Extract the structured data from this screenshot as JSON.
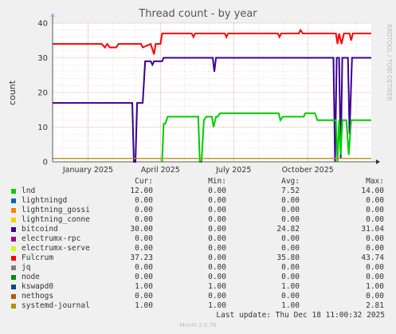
{
  "chart_data": {
    "type": "line",
    "title": "Thread count - by year",
    "ylabel": "count",
    "ylim": [
      0,
      40
    ],
    "yticks": [
      0,
      10,
      20,
      30,
      40
    ],
    "xlim": [
      "2024-11-18",
      "2025-12-19"
    ],
    "xticks": [
      {
        "date": "2025-01-01",
        "label": "January 2025"
      },
      {
        "date": "2025-04-01",
        "label": "April 2025"
      },
      {
        "date": "2025-07-01",
        "label": "July 2025"
      },
      {
        "date": "2025-10-01",
        "label": "October 2025"
      }
    ],
    "grid": true,
    "series": [
      {
        "name": "Fulcrum",
        "color": "#ff0000",
        "width": 2,
        "points": [
          [
            "2024-11-18",
            34
          ],
          [
            "2025-01-18",
            34
          ],
          [
            "2025-01-22",
            33
          ],
          [
            "2025-01-25",
            34
          ],
          [
            "2025-01-28",
            33
          ],
          [
            "2025-02-05",
            33
          ],
          [
            "2025-02-08",
            34
          ],
          [
            "2025-03-01",
            34
          ],
          [
            "2025-03-08",
            34
          ],
          [
            "2025-03-10",
            33
          ],
          [
            "2025-03-20",
            34
          ],
          [
            "2025-03-24",
            31
          ],
          [
            "2025-03-26",
            34
          ],
          [
            "2025-04-01",
            34
          ],
          [
            "2025-04-03",
            37
          ],
          [
            "2025-05-10",
            37
          ],
          [
            "2025-05-12",
            36
          ],
          [
            "2025-05-14",
            37
          ],
          [
            "2025-06-20",
            37
          ],
          [
            "2025-06-22",
            36
          ],
          [
            "2025-06-24",
            37
          ],
          [
            "2025-08-25",
            37
          ],
          [
            "2025-08-27",
            36
          ],
          [
            "2025-08-29",
            37
          ],
          [
            "2025-09-15",
            37
          ],
          [
            "2025-09-20",
            37
          ],
          [
            "2025-09-22",
            38
          ],
          [
            "2025-09-25",
            37
          ],
          [
            "2025-10-20",
            37
          ],
          [
            "2025-11-05",
            37
          ],
          [
            "2025-11-07",
            34
          ],
          [
            "2025-11-09",
            37
          ],
          [
            "2025-11-12",
            34
          ],
          [
            "2025-11-15",
            37
          ],
          [
            "2025-11-22",
            37
          ],
          [
            "2025-11-24",
            35
          ],
          [
            "2025-11-26",
            37
          ],
          [
            "2025-12-19",
            37
          ]
        ]
      },
      {
        "name": "bitcoind",
        "color": "#3b0091",
        "width": 2,
        "points": [
          [
            "2024-11-18",
            17
          ],
          [
            "2025-02-25",
            17
          ],
          [
            "2025-02-27",
            0
          ],
          [
            "2025-03-01",
            0
          ],
          [
            "2025-03-03",
            17
          ],
          [
            "2025-03-04",
            17
          ],
          [
            "2025-03-06",
            17
          ],
          [
            "2025-03-10",
            17
          ],
          [
            "2025-03-13",
            29
          ],
          [
            "2025-03-20",
            29
          ],
          [
            "2025-03-22",
            28
          ],
          [
            "2025-03-24",
            29
          ],
          [
            "2025-04-03",
            29
          ],
          [
            "2025-04-05",
            30
          ],
          [
            "2025-06-05",
            30
          ],
          [
            "2025-06-07",
            26
          ],
          [
            "2025-06-09",
            30
          ],
          [
            "2025-08-28",
            30
          ],
          [
            "2025-09-01",
            30
          ],
          [
            "2025-10-24",
            30
          ],
          [
            "2025-11-02",
            30
          ],
          [
            "2025-11-04",
            0
          ],
          [
            "2025-11-06",
            30
          ],
          [
            "2025-11-09",
            30
          ],
          [
            "2025-11-11",
            1
          ],
          [
            "2025-11-13",
            30
          ],
          [
            "2025-11-20",
            30
          ],
          [
            "2025-11-22",
            8
          ],
          [
            "2025-11-25",
            30
          ],
          [
            "2025-12-19",
            30
          ]
        ]
      },
      {
        "name": "lnd",
        "color": "#00cc00",
        "width": 2,
        "points": [
          [
            "2025-04-03",
            0
          ],
          [
            "2025-04-05",
            11
          ],
          [
            "2025-04-07",
            11
          ],
          [
            "2025-04-10",
            13
          ],
          [
            "2025-05-18",
            13
          ],
          [
            "2025-05-20",
            0
          ],
          [
            "2025-05-22",
            0
          ],
          [
            "2025-05-25",
            12
          ],
          [
            "2025-05-28",
            13
          ],
          [
            "2025-06-04",
            13
          ],
          [
            "2025-06-06",
            10
          ],
          [
            "2025-06-09",
            13
          ],
          [
            "2025-06-11",
            13
          ],
          [
            "2025-06-14",
            14
          ],
          [
            "2025-08-26",
            14
          ],
          [
            "2025-08-28",
            12
          ],
          [
            "2025-08-31",
            13
          ],
          [
            "2025-09-26",
            13
          ],
          [
            "2025-09-28",
            14
          ],
          [
            "2025-10-10",
            14
          ],
          [
            "2025-10-13",
            12
          ],
          [
            "2025-11-05",
            12
          ],
          [
            "2025-11-07",
            0
          ],
          [
            "2025-11-09",
            12
          ],
          [
            "2025-11-11",
            2
          ],
          [
            "2025-11-13",
            12
          ],
          [
            "2025-11-18",
            12
          ],
          [
            "2025-11-21",
            2
          ],
          [
            "2025-11-24",
            12
          ],
          [
            "2025-12-19",
            12
          ]
        ]
      },
      {
        "name": "kswapd0",
        "color": "#555555",
        "width": 1,
        "points": [
          [
            "2024-11-18",
            1
          ],
          [
            "2025-12-19",
            1
          ]
        ]
      },
      {
        "name": "systemd-journal",
        "color": "#c39400",
        "width": 1.2,
        "points": [
          [
            "2024-11-18",
            1
          ],
          [
            "2025-12-19",
            1
          ]
        ]
      }
    ]
  },
  "legend": {
    "headers": {
      "cur": "Cur:",
      "min": "Min:",
      "avg": "Avg:",
      "max": "Max:"
    },
    "rows": [
      {
        "name": "lnd",
        "color": "#00cc00",
        "cur": "12.00",
        "min": "0.00",
        "avg": "7.52",
        "max": "14.00"
      },
      {
        "name": "lightningd",
        "color": "#0066b3",
        "cur": "0.00",
        "min": "0.00",
        "avg": "0.00",
        "max": "0.00"
      },
      {
        "name": "lightning_gossi",
        "color": "#ff8000",
        "cur": "0.00",
        "min": "0.00",
        "avg": "0.00",
        "max": "0.00"
      },
      {
        "name": "lightning_conne",
        "color": "#ffcc00",
        "cur": "0.00",
        "min": "0.00",
        "avg": "0.00",
        "max": "0.00"
      },
      {
        "name": "bitcoind",
        "color": "#330099",
        "cur": "30.00",
        "min": "0.00",
        "avg": "24.82",
        "max": "31.04"
      },
      {
        "name": "electrumx-rpc",
        "color": "#990099",
        "cur": "0.00",
        "min": "0.00",
        "avg": "0.00",
        "max": "0.00"
      },
      {
        "name": "electrumx-serve",
        "color": "#ccff00",
        "cur": "0.00",
        "min": "0.00",
        "avg": "0.00",
        "max": "0.00"
      },
      {
        "name": "Fulcrum",
        "color": "#ff0000",
        "cur": "37.23",
        "min": "0.00",
        "avg": "35.80",
        "max": "43.74"
      },
      {
        "name": "jq",
        "color": "#808080",
        "cur": "0.00",
        "min": "0.00",
        "avg": "0.00",
        "max": "0.00"
      },
      {
        "name": "node",
        "color": "#008f00",
        "cur": "0.00",
        "min": "0.00",
        "avg": "0.00",
        "max": "0.00"
      },
      {
        "name": "kswapd0",
        "color": "#00487d",
        "cur": "1.00",
        "min": "1.00",
        "avg": "1.00",
        "max": "1.00"
      },
      {
        "name": "nethogs",
        "color": "#b35a00",
        "cur": "0.00",
        "min": "0.00",
        "avg": "0.00",
        "max": "0.00"
      },
      {
        "name": "systemd-journal",
        "color": "#b38f00",
        "cur": "1.00",
        "min": "1.00",
        "avg": "1.00",
        "max": "2.81"
      }
    ]
  },
  "last_update": "Last update: Thu Dec 18 11:00:32 2025",
  "watermark": "RRDTOOL / TOBI OETIKER",
  "footer": "Munin 2.0.76"
}
